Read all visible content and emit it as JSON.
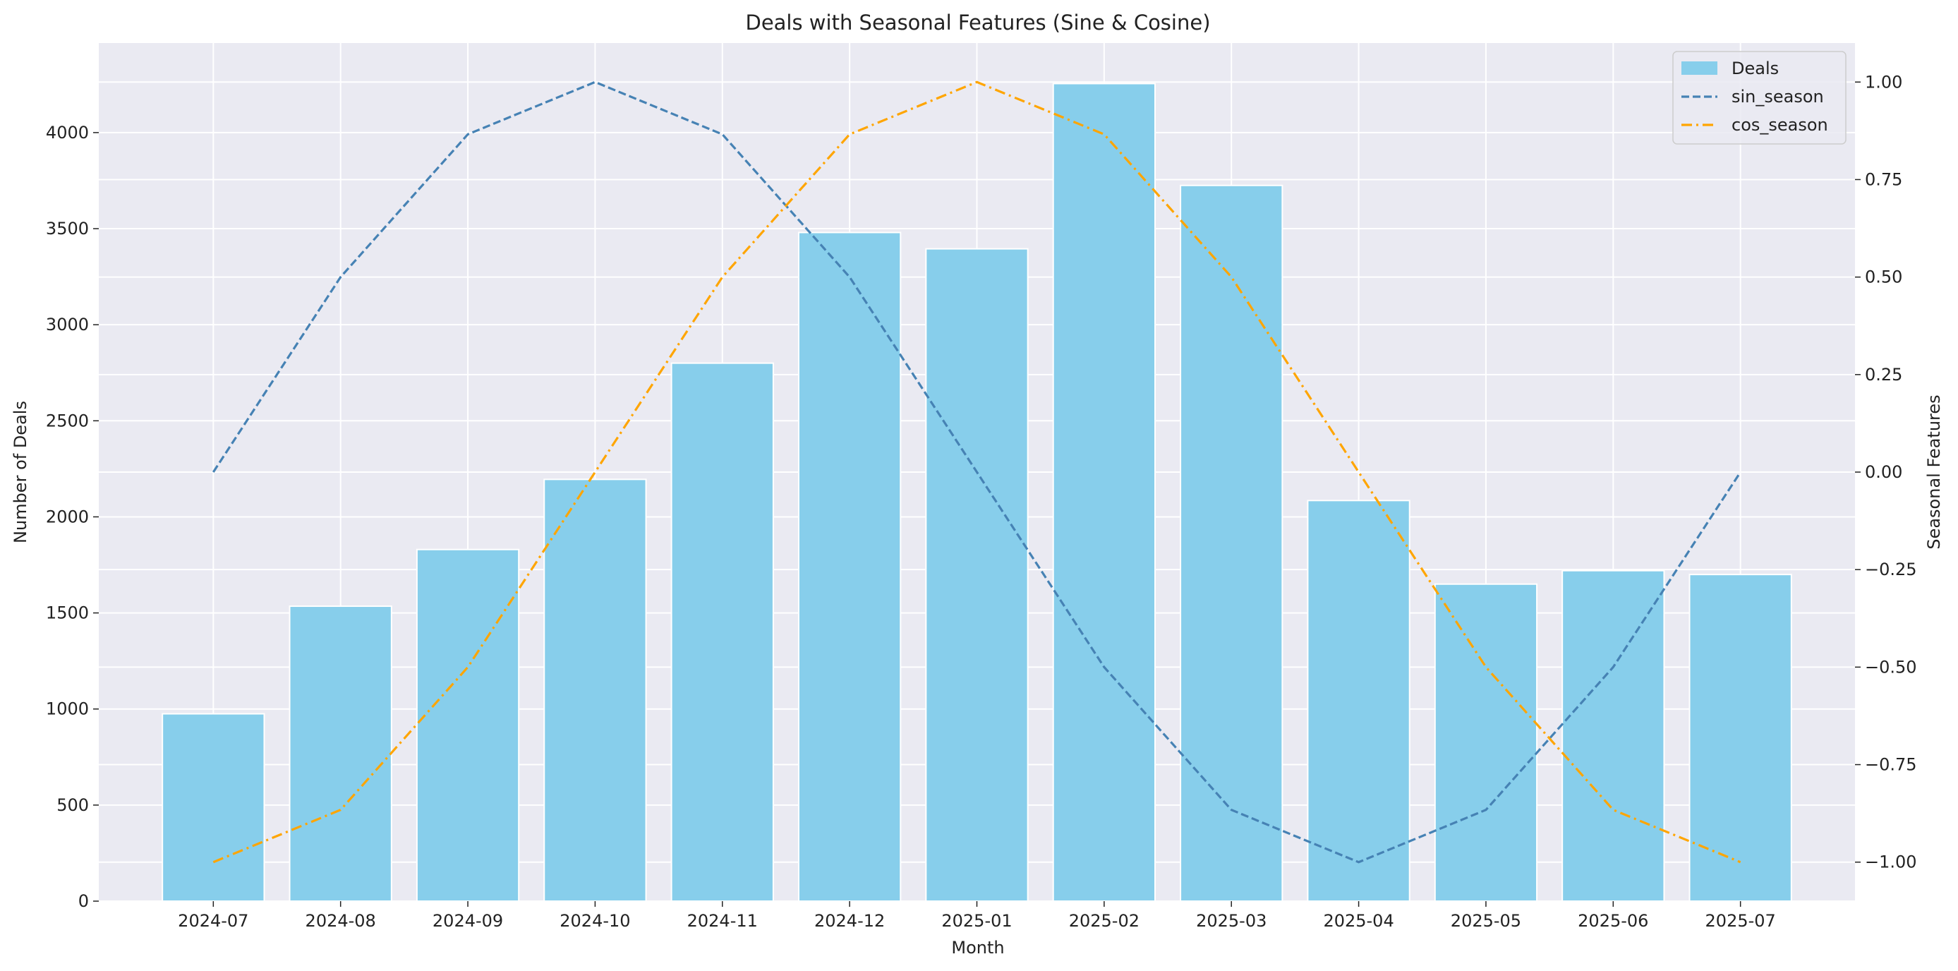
{
  "chart_data": {
    "type": "bar",
    "title": "Deals with Seasonal Features (Sine & Cosine)",
    "xlabel": "Month",
    "ylabel": "Number of Deals",
    "y2label": "Seasonal Features",
    "categories": [
      "2024-07",
      "2024-08",
      "2024-09",
      "2024-10",
      "2024-11",
      "2024-12",
      "2025-01",
      "2025-02",
      "2025-03",
      "2025-04",
      "2025-05",
      "2025-06",
      "2025-07"
    ],
    "series": [
      {
        "name": "Deals",
        "type": "bar",
        "axis": "left",
        "color": "#87CEEB",
        "values": [
          975,
          1535,
          1830,
          2195,
          2800,
          3480,
          3395,
          4255,
          3725,
          2085,
          1650,
          1720,
          1700
        ]
      },
      {
        "name": "sin_season",
        "type": "line",
        "axis": "right",
        "color": "#4682B4",
        "dash": "dashed",
        "values": [
          0.0,
          0.5,
          0.866,
          1.0,
          0.866,
          0.5,
          0.0,
          -0.5,
          -0.866,
          -1.0,
          -0.866,
          -0.5,
          0.0
        ]
      },
      {
        "name": "cos_season",
        "type": "line",
        "axis": "right",
        "color": "#FFA500",
        "dash": "dashdot",
        "values": [
          -1.0,
          -0.866,
          -0.5,
          0.0,
          0.5,
          0.866,
          1.0,
          0.866,
          0.5,
          0.0,
          -0.5,
          -0.866,
          -1.0
        ]
      }
    ],
    "ylim": [
      0,
      4466
    ],
    "y2lim": [
      -1.1,
      1.1
    ],
    "yticks": [
      0,
      500,
      1000,
      1500,
      2000,
      2500,
      3000,
      3500,
      4000
    ],
    "ytick_labels": [
      "0",
      "500",
      "1000",
      "1500",
      "2000",
      "2500",
      "3000",
      "3500",
      "4000"
    ],
    "y2ticks": [
      -1.0,
      -0.75,
      -0.5,
      -0.25,
      0.0,
      0.25,
      0.5,
      0.75,
      1.0
    ],
    "y2tick_labels": [
      "−1.00",
      "−0.75",
      "−0.50",
      "−0.25",
      "0.00",
      "0.25",
      "0.50",
      "0.75",
      "1.00"
    ],
    "grid": true,
    "legend_position": "top-right",
    "background_color": "#EAEAF2"
  }
}
